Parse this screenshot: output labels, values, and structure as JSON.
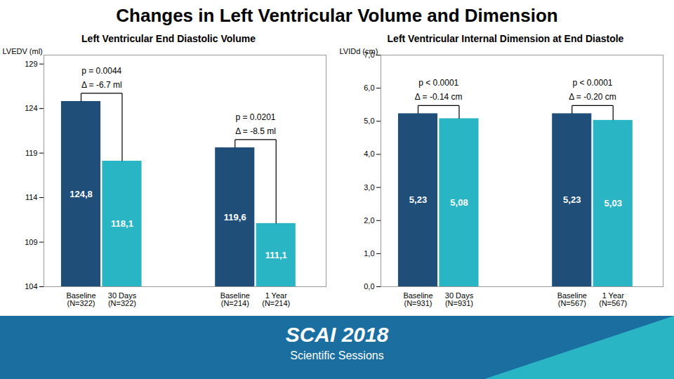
{
  "title": "Changes in Left Ventricular Volume and Dimension",
  "annotations": [
    "SCAI 2018",
    "Scientific Sessions"
  ],
  "chart_data": [
    {
      "type": "bar",
      "title": "Left Ventricular End Diastolic Volume",
      "ylabel": "LVEDV (ml)",
      "categories": [
        "Baseline\n(N=322)",
        "30 Days\n(N=322)",
        "Baseline\n(N=214)",
        "1 Year\n(N=214)"
      ],
      "values": [
        124.8,
        118.1,
        119.6,
        111.1
      ],
      "value_labels": [
        "124,8",
        "118,1",
        "119,6",
        "111,1"
      ],
      "colors": [
        "#1f4e79",
        "#2ab5c5",
        "#1f4e79",
        "#2ab5c5"
      ],
      "data_labels": true,
      "ylim": [
        104,
        130
      ],
      "yticks": [
        104,
        109,
        114,
        119,
        124,
        129
      ],
      "annotations": [
        [
          "Δ = -6.7 ml",
          "p = 0.0044"
        ],
        [
          "Δ = -8.5 ml",
          "p = 0.0201"
        ]
      ],
      "grid": false
    },
    {
      "type": "bar",
      "title": "Left Ventricular Internal Dimension at End Diastole",
      "ylabel": "LVIDd (cm)",
      "categories": [
        "Baseline\n(N=931)",
        "30 Days\n(N=931)",
        "Baseline\n(N=567)",
        "1 Year\n(N=567)"
      ],
      "values": [
        5.23,
        5.08,
        5.23,
        5.03
      ],
      "value_labels": [
        "5,23",
        "5,08",
        "5,23",
        "5,03"
      ],
      "colors": [
        "#1f4e79",
        "#2ab5c5",
        "#1f4e79",
        "#2ab5c5"
      ],
      "data_labels": true,
      "ylim": [
        0.0,
        7.0
      ],
      "yticks": [
        {
          "value": 0,
          "label": "0,0"
        },
        {
          "value": 1,
          "label": "1,0"
        },
        {
          "value": 2,
          "label": "2,0"
        },
        {
          "value": 3,
          "label": "3,0"
        },
        {
          "value": 4,
          "label": "4,0"
        },
        {
          "value": 5,
          "label": "5,0"
        },
        {
          "value": 6,
          "label": "6,0"
        },
        {
          "value": 7,
          "label": "7,0"
        }
      ],
      "annotations": [
        [
          "Δ = -0.14 cm",
          "p < 0.0001"
        ],
        [
          "Δ = -0.20 cm",
          "p < 0.0001"
        ]
      ],
      "grid": false
    }
  ]
}
